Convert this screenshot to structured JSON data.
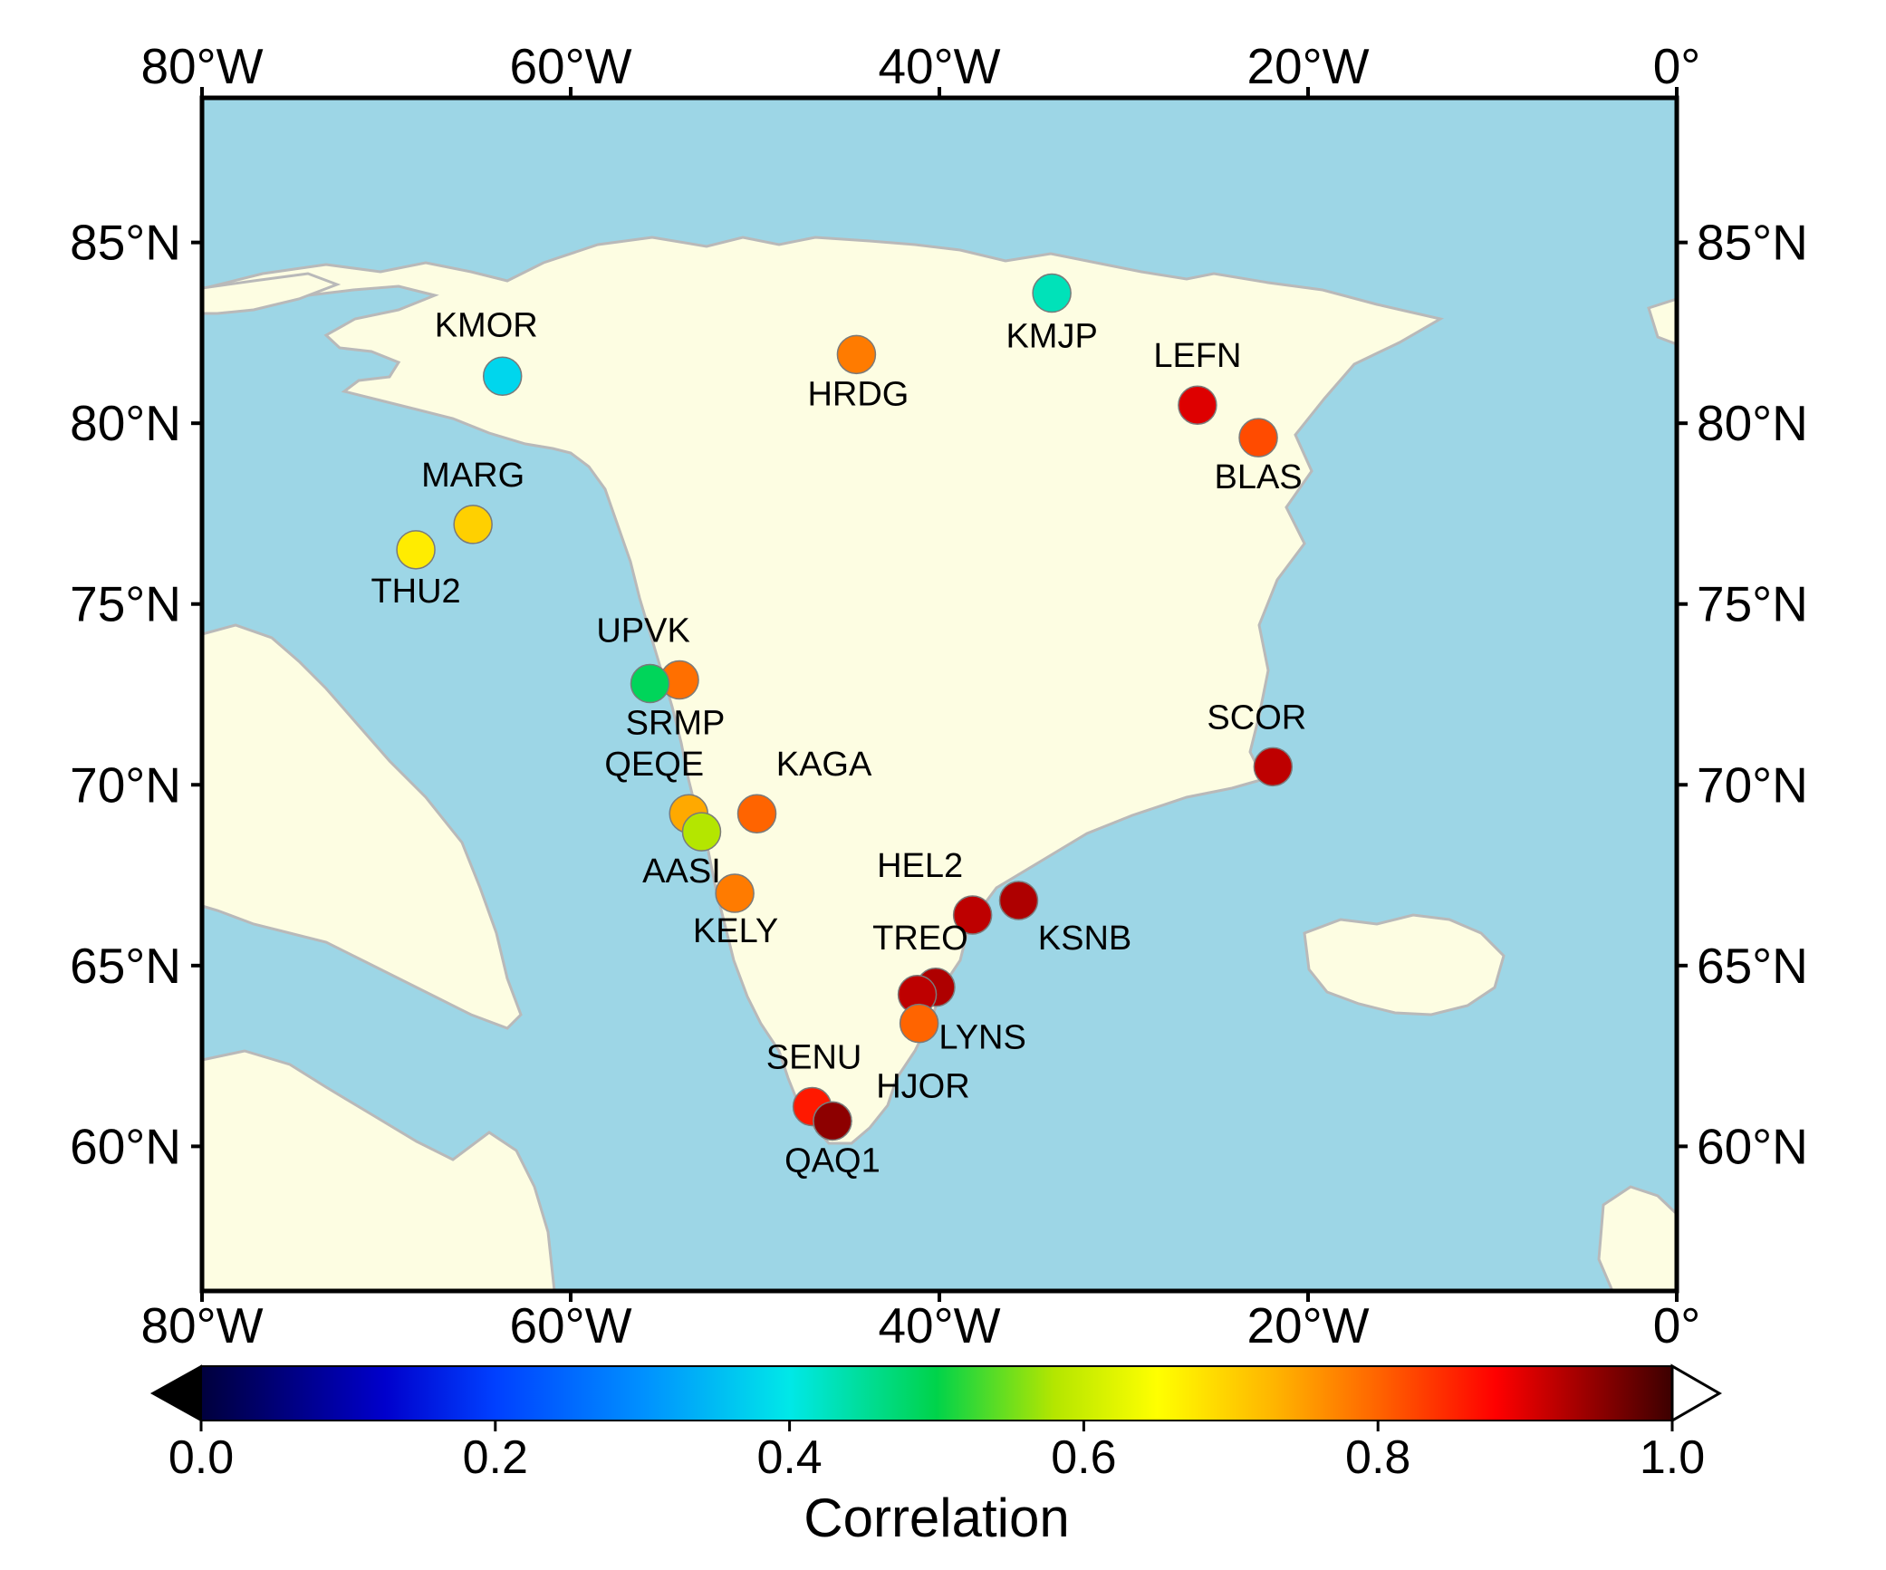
{
  "map": {
    "projection": "plate-carree",
    "lon_range": [
      -80,
      0
    ],
    "lat_range": [
      56,
      89
    ],
    "colors": {
      "ocean": "#9dd6e6",
      "land": "#fdfde2",
      "coast": "#b9b9b9",
      "frame": "#000000"
    },
    "lon_ticks": [
      {
        "value": -80,
        "label": "80°W"
      },
      {
        "value": -60,
        "label": "60°W"
      },
      {
        "value": -40,
        "label": "40°W"
      },
      {
        "value": -20,
        "label": "20°W"
      },
      {
        "value": 0,
        "label": "0°"
      }
    ],
    "lat_ticks": [
      {
        "value": 85,
        "label": "85°N"
      },
      {
        "value": 80,
        "label": "80°N"
      },
      {
        "value": 75,
        "label": "75°N"
      },
      {
        "value": 70,
        "label": "70°N"
      },
      {
        "value": 65,
        "label": "65°N"
      },
      {
        "value": 60,
        "label": "60°N"
      }
    ]
  },
  "chart_data": {
    "type": "scatter",
    "value_name": "Correlation",
    "stations": [
      {
        "name": "KMOR",
        "lon": -63.7,
        "lat": 81.3,
        "value": 0.38
      },
      {
        "name": "KMJP",
        "lon": -33.9,
        "lat": 83.6,
        "value": 0.43
      },
      {
        "name": "HRDG",
        "lon": -44.5,
        "lat": 81.9,
        "value": 0.78
      },
      {
        "name": "LEFN",
        "lon": -26.0,
        "lat": 80.5,
        "value": 0.9
      },
      {
        "name": "BLAS",
        "lon": -22.7,
        "lat": 79.6,
        "value": 0.82
      },
      {
        "name": "MARG",
        "lon": -65.3,
        "lat": 77.2,
        "value": 0.7
      },
      {
        "name": "THU2",
        "lon": -68.4,
        "lat": 76.5,
        "value": 0.67
      },
      {
        "name": "UPVK",
        "lon": -54.1,
        "lat": 72.9,
        "value": 0.79
      },
      {
        "name": "SRMP",
        "lon": -55.7,
        "lat": 72.8,
        "value": 0.49
      },
      {
        "name": "SCOR",
        "lon": -21.9,
        "lat": 70.5,
        "value": 0.92
      },
      {
        "name": "QEQE",
        "lon": -53.6,
        "lat": 69.2,
        "value": 0.74
      },
      {
        "name": "KAGA",
        "lon": -49.9,
        "lat": 69.2,
        "value": 0.8
      },
      {
        "name": "AASI",
        "lon": -52.9,
        "lat": 68.7,
        "value": 0.58
      },
      {
        "name": "KELY",
        "lon": -51.1,
        "lat": 67.0,
        "value": 0.78
      },
      {
        "name": "HEL2",
        "lon": -38.2,
        "lat": 66.4,
        "value": 0.92
      },
      {
        "name": "KSNB",
        "lon": -35.7,
        "lat": 66.8,
        "value": 0.93
      },
      {
        "name": "TREO",
        "lon": -40.2,
        "lat": 64.4,
        "value": 0.93
      },
      {
        "name": "",
        "lon": -41.2,
        "lat": 64.2,
        "value": 0.92
      },
      {
        "name": "LYNS",
        "lon": -41.1,
        "lat": 63.4,
        "value": 0.8
      },
      {
        "name": "SENU",
        "lon": -46.9,
        "lat": 61.1,
        "value": 0.86
      },
      {
        "name": "HJOR",
        "lon": -45.8,
        "lat": 60.7,
        "value": 0.95
      },
      {
        "name": "QAQ1",
        "lon": -45.8,
        "lat": 60.7,
        "value": 0.95
      }
    ],
    "colorbar": {
      "label": "Correlation",
      "range": [
        0,
        1
      ],
      "ticks": [
        "0.0",
        "0.2",
        "0.4",
        "0.6",
        "0.8",
        "1.0"
      ],
      "stops": [
        {
          "value": 0.0,
          "color": "#00003c"
        },
        {
          "value": 0.125,
          "color": "#0000cc"
        },
        {
          "value": 0.2,
          "color": "#0040ff"
        },
        {
          "value": 0.3,
          "color": "#0090ff"
        },
        {
          "value": 0.4,
          "color": "#00e8e8"
        },
        {
          "value": 0.5,
          "color": "#00d34a"
        },
        {
          "value": 0.58,
          "color": "#b4e600"
        },
        {
          "value": 0.65,
          "color": "#ffff00"
        },
        {
          "value": 0.73,
          "color": "#ffb400"
        },
        {
          "value": 0.8,
          "color": "#ff6400"
        },
        {
          "value": 0.88,
          "color": "#ff0000"
        },
        {
          "value": 1.0,
          "color": "#3c0000"
        }
      ],
      "under_color": "#000000",
      "over_color": "#ffffff"
    }
  }
}
